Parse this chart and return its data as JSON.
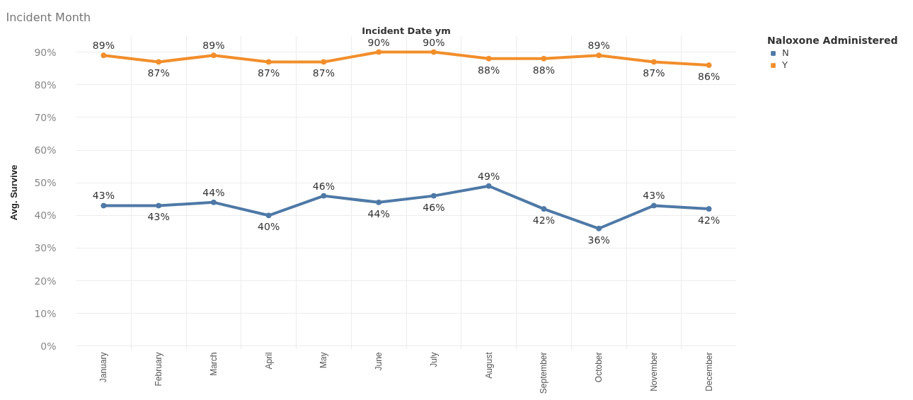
{
  "chart_data": {
    "type": "line",
    "title": "Incident Month",
    "xlabel": "Incident Date ym",
    "ylabel": "Avg. Survive",
    "legend_title": "Naloxone Administered",
    "categories": [
      "January",
      "February",
      "March",
      "April",
      "May",
      "June",
      "July",
      "August",
      "September",
      "October",
      "November",
      "December"
    ],
    "series": [
      {
        "name": "N",
        "color": "#4e79a7",
        "values": [
          43,
          43,
          44,
          40,
          46,
          44,
          46,
          49,
          42,
          36,
          43,
          42
        ],
        "value_labels": [
          "43%",
          "43%",
          "44%",
          "40%",
          "46%",
          "44%",
          "46%",
          "49%",
          "42%",
          "36%",
          "43%",
          "42%"
        ]
      },
      {
        "name": "Y",
        "color": "#f28e2b",
        "values": [
          89,
          87,
          89,
          87,
          87,
          90,
          90,
          88,
          88,
          89,
          87,
          86
        ],
        "value_labels": [
          "89%",
          "87%",
          "89%",
          "87%",
          "87%",
          "90%",
          "90%",
          "88%",
          "88%",
          "89%",
          "87%",
          "86%"
        ]
      }
    ],
    "ylim": [
      -1,
      95
    ],
    "yticks": [
      {
        "value": 0,
        "label": "0%"
      },
      {
        "value": 10,
        "label": "10%"
      },
      {
        "value": 20,
        "label": "20%"
      },
      {
        "value": 30,
        "label": "30%"
      },
      {
        "value": 40,
        "label": "40%"
      },
      {
        "value": 50,
        "label": "50%"
      },
      {
        "value": 60,
        "label": "60%"
      },
      {
        "value": 70,
        "label": "70%"
      },
      {
        "value": 80,
        "label": "80%"
      },
      {
        "value": 90,
        "label": "90%"
      }
    ],
    "grid": true,
    "legend": "top right",
    "marker": "circle",
    "line_style": "solid"
  }
}
